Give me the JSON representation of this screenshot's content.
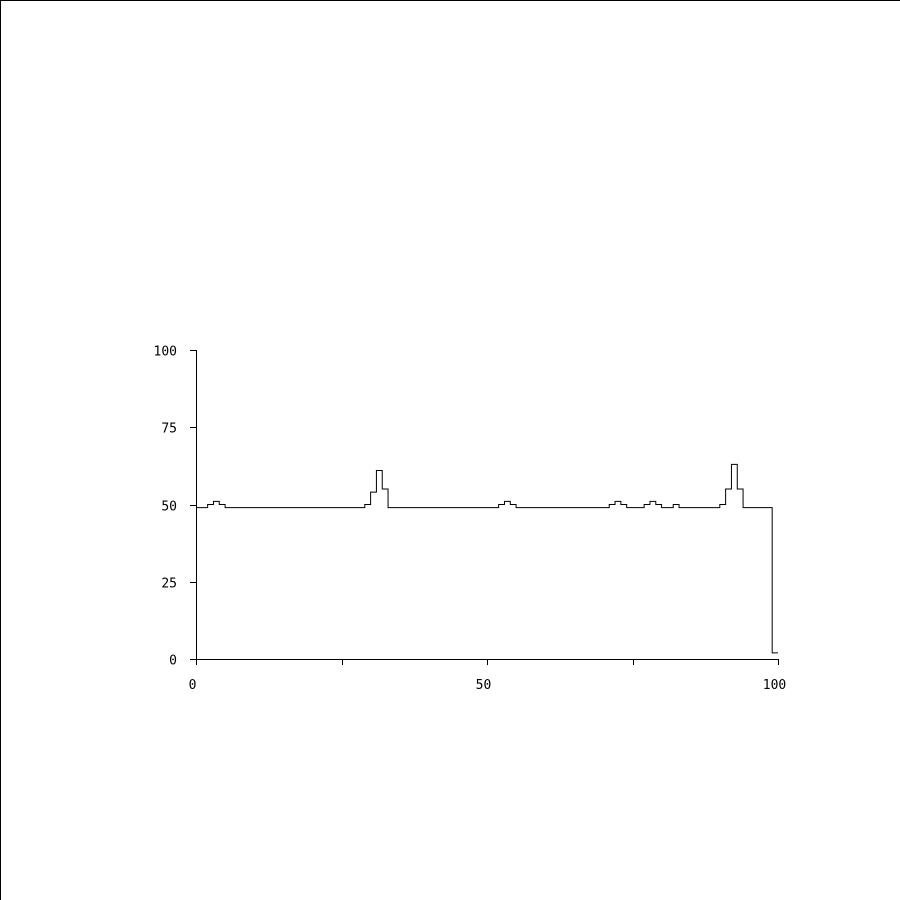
{
  "chart_data": {
    "type": "line",
    "style": "step",
    "title": "",
    "xlabel": "",
    "ylabel": "",
    "xlim": [
      0,
      100
    ],
    "ylim": [
      0,
      100
    ],
    "x_ticks": [
      0,
      25,
      50,
      75,
      100
    ],
    "x_tick_labels": [
      "0",
      "",
      "50",
      "",
      "100"
    ],
    "y_ticks": [
      0,
      25,
      50,
      75,
      100
    ],
    "y_tick_labels": [
      "0",
      "25",
      "50",
      "75",
      "100"
    ],
    "grid": false,
    "line_color": "#000000",
    "series": [
      {
        "x": [
          0,
          2,
          3,
          4,
          5,
          29,
          30,
          31,
          32,
          33,
          52,
          53,
          54,
          55,
          71,
          72,
          73,
          74,
          77,
          78,
          79,
          80,
          82,
          83,
          90,
          91,
          92,
          93,
          94,
          99,
          100
        ],
        "y": [
          49,
          50,
          51,
          50,
          49,
          50,
          54,
          61,
          55,
          49,
          50,
          51,
          50,
          49,
          50,
          51,
          50,
          49,
          50,
          51,
          50,
          49,
          50,
          49,
          50,
          55,
          63,
          55,
          49,
          2,
          2
        ]
      }
    ]
  }
}
